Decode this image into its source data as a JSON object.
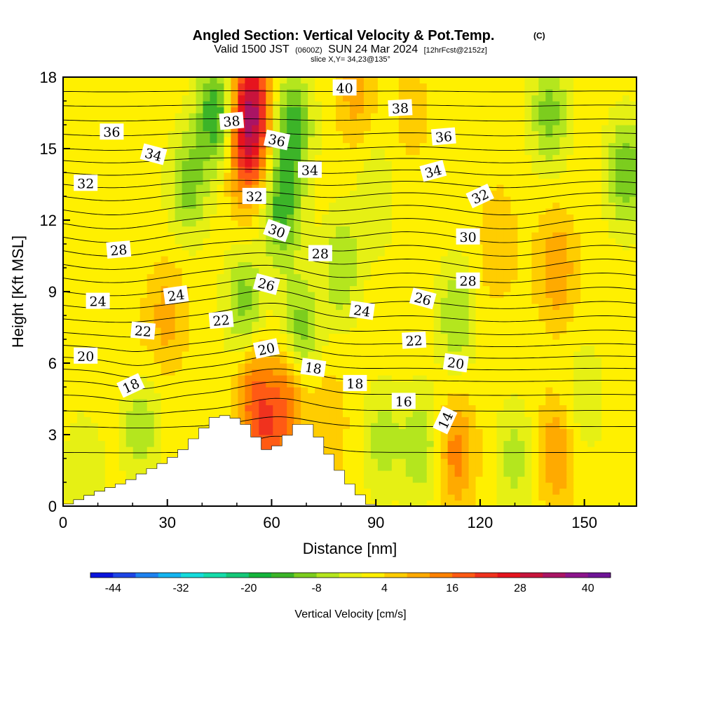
{
  "chart_data": {
    "type": "heatmap",
    "title": "Angled Section: Vertical Velocity & Pot.Temp.",
    "title_mark": "(C)",
    "subtitle_parts": [
      "Valid 1500 JST",
      "(0600Z)",
      "SUN 24 Mar 2024",
      "[12hrFcst@2152z]"
    ],
    "slice_label": "slice X,Y= 34,23@135°",
    "xlabel": "Distance [nm]",
    "ylabel": "Height [Kft MSL]",
    "xlim": [
      0,
      165
    ],
    "ylim": [
      0,
      18
    ],
    "xticks": [
      0,
      30,
      60,
      90,
      120,
      150
    ],
    "yticks": [
      0,
      3,
      6,
      9,
      12,
      15,
      18
    ],
    "grid": false,
    "colorbar": {
      "label": "Vertical Velocity [cm/s]",
      "tick_labels": [
        "-44",
        "-32",
        "-20",
        "-8",
        "4",
        "16",
        "28",
        "40"
      ],
      "min": -48,
      "max": 44,
      "colors": [
        "#0a14dc",
        "#1e46e6",
        "#1e82f0",
        "#14b4f0",
        "#14dcdc",
        "#14dcaa",
        "#14c878",
        "#14b43c",
        "#3cb428",
        "#7ccd1e",
        "#b4e61e",
        "#e6f014",
        "#fff000",
        "#ffcd00",
        "#ffaa00",
        "#ff8200",
        "#ff5a14",
        "#f0321e",
        "#e6141e",
        "#c8143c",
        "#aa1464",
        "#8c148c",
        "#6e1496"
      ]
    },
    "terrain_profile": {
      "x": [
        0,
        10,
        18,
        22,
        24,
        26,
        30,
        34,
        36,
        38,
        40,
        42,
        44,
        48,
        52,
        54,
        56,
        58,
        60,
        62,
        64,
        66,
        68,
        70,
        72,
        74,
        76,
        78,
        80,
        82,
        84,
        86,
        88,
        90,
        165
      ],
      "height": [
        0,
        0.6,
        1.0,
        1.3,
        1.5,
        1.6,
        1.9,
        2.3,
        2.6,
        2.9,
        3.2,
        3.5,
        3.8,
        3.8,
        3.5,
        3.2,
        2.8,
        2.4,
        2.3,
        2.6,
        2.9,
        3.2,
        3.5,
        3.5,
        3.2,
        2.8,
        2.3,
        1.8,
        1.4,
        1.0,
        0.7,
        0.4,
        0.1,
        0,
        0
      ]
    },
    "velocity_features": [
      {
        "x": 54,
        "y": 16.8,
        "value": 30
      },
      {
        "x": 53,
        "y": 14.5,
        "value": 16
      },
      {
        "x": 57,
        "y": 11.0,
        "value": 2
      },
      {
        "x": 44,
        "y": 16.5,
        "value": -16
      },
      {
        "x": 66,
        "y": 16.0,
        "value": -14
      },
      {
        "x": 63,
        "y": 12.5,
        "value": -14
      },
      {
        "x": 36,
        "y": 13.5,
        "value": -10
      },
      {
        "x": 52,
        "y": 8.5,
        "value": -10
      },
      {
        "x": 68,
        "y": 7.2,
        "value": -12
      },
      {
        "x": 80,
        "y": 10.0,
        "value": -8
      },
      {
        "x": 113,
        "y": 8.0,
        "value": -8
      },
      {
        "x": 140,
        "y": 16.5,
        "value": -10
      },
      {
        "x": 162,
        "y": 14.0,
        "value": -12
      },
      {
        "x": 30,
        "y": 8.0,
        "value": 10
      },
      {
        "x": 20,
        "y": 6.0,
        "value": 5
      },
      {
        "x": 142,
        "y": 10.0,
        "value": 12
      },
      {
        "x": 125,
        "y": 11.0,
        "value": 8
      },
      {
        "x": 55,
        "y": 4.5,
        "value": 16
      },
      {
        "x": 65,
        "y": 5.0,
        "value": 14
      },
      {
        "x": 60,
        "y": 2.6,
        "value": 14
      },
      {
        "x": 76,
        "y": 3.5,
        "value": 8
      },
      {
        "x": 113,
        "y": 2.2,
        "value": 14
      },
      {
        "x": 142,
        "y": 2.2,
        "value": 12
      },
      {
        "x": 92,
        "y": 2.8,
        "value": -6
      },
      {
        "x": 103,
        "y": 2.5,
        "value": -8
      },
      {
        "x": 130,
        "y": 2.0,
        "value": -6
      },
      {
        "x": 150,
        "y": 4.5,
        "value": -4
      },
      {
        "x": 22,
        "y": 3.5,
        "value": -8
      },
      {
        "x": 6,
        "y": 1.5,
        "value": -4
      },
      {
        "x": 84,
        "y": 17.5,
        "value": 10
      },
      {
        "x": 100,
        "y": 16.5,
        "value": 6
      },
      {
        "x": 10,
        "y": 12.0,
        "value": 4
      },
      {
        "x": 90,
        "y": 13.0,
        "value": -4
      }
    ],
    "contour_levels": [
      14,
      15,
      16,
      17,
      18,
      19,
      20,
      21,
      22,
      23,
      24,
      25,
      26,
      27,
      28,
      29,
      30,
      31,
      32,
      33,
      34,
      35,
      36,
      37,
      38,
      39,
      40
    ],
    "contour_labels": [
      {
        "text": "40",
        "x": 81.0,
        "y": 17.55,
        "angle": 0
      },
      {
        "text": "38",
        "x": 48.5,
        "y": 16.15,
        "angle": -5
      },
      {
        "text": "38",
        "x": 97.0,
        "y": 16.7,
        "angle": -3
      },
      {
        "text": "36",
        "x": 14.0,
        "y": 15.7,
        "angle": 0
      },
      {
        "text": "36",
        "x": 61.5,
        "y": 15.35,
        "angle": 12
      },
      {
        "text": "36",
        "x": 109.5,
        "y": 15.5,
        "angle": -5
      },
      {
        "text": "34",
        "x": 26.0,
        "y": 14.75,
        "angle": 15
      },
      {
        "text": "34",
        "x": 71.0,
        "y": 14.1,
        "angle": 0
      },
      {
        "text": "34",
        "x": 106.5,
        "y": 14.05,
        "angle": -15
      },
      {
        "text": "32",
        "x": 6.5,
        "y": 13.55,
        "angle": 0
      },
      {
        "text": "32",
        "x": 55.0,
        "y": 13.0,
        "angle": 0
      },
      {
        "text": "32",
        "x": 120.0,
        "y": 13.0,
        "angle": -25
      },
      {
        "text": "30",
        "x": 61.5,
        "y": 11.55,
        "angle": 20
      },
      {
        "text": "30",
        "x": 116.5,
        "y": 11.3,
        "angle": 0
      },
      {
        "text": "28",
        "x": 16.0,
        "y": 10.75,
        "angle": -5
      },
      {
        "text": "28",
        "x": 74.0,
        "y": 10.6,
        "angle": 0
      },
      {
        "text": "28",
        "x": 116.5,
        "y": 9.45,
        "angle": 0
      },
      {
        "text": "26",
        "x": 58.5,
        "y": 9.3,
        "angle": 15
      },
      {
        "text": "26",
        "x": 103.5,
        "y": 8.7,
        "angle": 15
      },
      {
        "text": "24",
        "x": 10.0,
        "y": 8.6,
        "angle": 0
      },
      {
        "text": "24",
        "x": 32.5,
        "y": 8.85,
        "angle": -8
      },
      {
        "text": "24",
        "x": 86.0,
        "y": 8.2,
        "angle": 8
      },
      {
        "text": "22",
        "x": 23.0,
        "y": 7.35,
        "angle": 5
      },
      {
        "text": "22",
        "x": 45.5,
        "y": 7.8,
        "angle": -5
      },
      {
        "text": "22",
        "x": 101.0,
        "y": 6.95,
        "angle": -3
      },
      {
        "text": "20",
        "x": 6.5,
        "y": 6.3,
        "angle": 0
      },
      {
        "text": "20",
        "x": 58.5,
        "y": 6.6,
        "angle": -12
      },
      {
        "text": "20",
        "x": 113.0,
        "y": 6.0,
        "angle": 8
      },
      {
        "text": "18",
        "x": 19.5,
        "y": 5.05,
        "angle": -25
      },
      {
        "text": "18",
        "x": 72.0,
        "y": 5.8,
        "angle": 8
      },
      {
        "text": "18",
        "x": 84.0,
        "y": 5.15,
        "angle": 0
      },
      {
        "text": "16",
        "x": 98.0,
        "y": 4.4,
        "angle": 0
      },
      {
        "text": "14",
        "x": 110.0,
        "y": 3.6,
        "angle": -65
      }
    ]
  }
}
